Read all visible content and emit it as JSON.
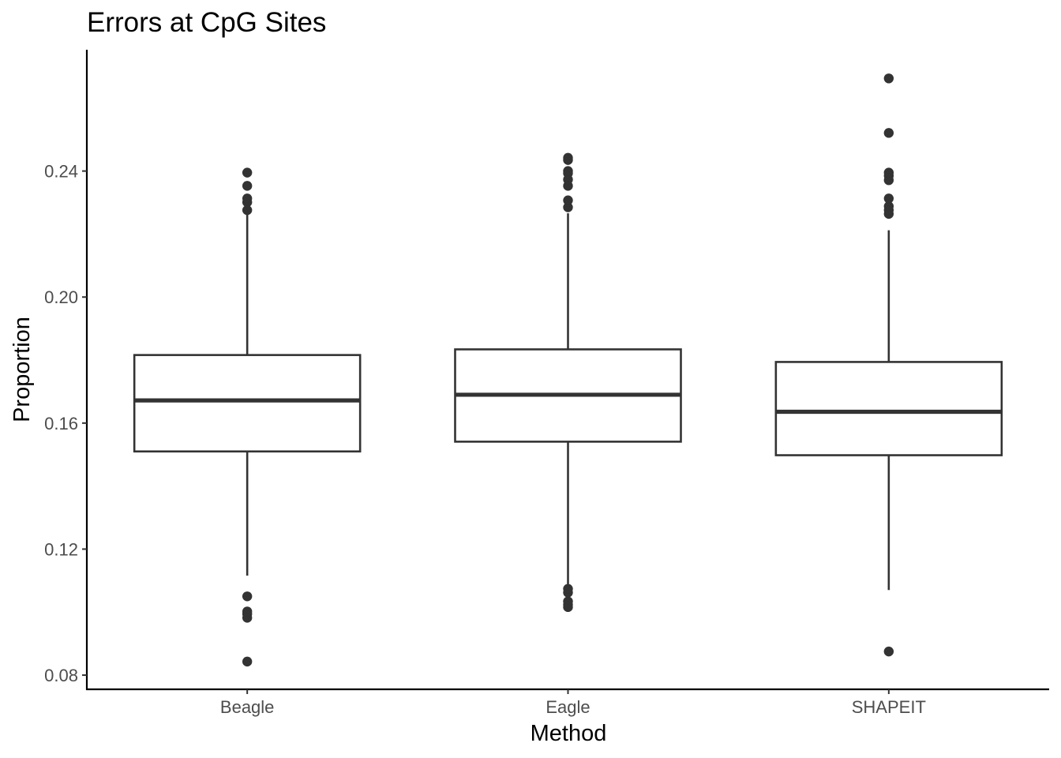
{
  "chart_data": {
    "type": "boxplot",
    "title": "Errors at CpG Sites",
    "xlabel": "Method",
    "ylabel": "Proportion",
    "ylim": [
      0.0755,
      0.2785
    ],
    "yticks": [
      0.08,
      0.12,
      0.16,
      0.2,
      0.24
    ],
    "ytick_labels": [
      "0.08",
      "0.12",
      "0.16",
      "0.20",
      "0.24"
    ],
    "grid": false,
    "legend": "none",
    "categories": [
      "Beagle",
      "Eagle",
      "SHAPEIT"
    ],
    "boxes": [
      {
        "category": "Beagle",
        "lower_whisker": 0.1116,
        "q1": 0.151,
        "median": 0.1672,
        "q3": 0.1816,
        "upper_whisker": 0.2274,
        "outliers": [
          0.0843,
          0.0982,
          0.0994,
          0.1002,
          0.105,
          0.2276,
          0.2301,
          0.2313,
          0.2353,
          0.2395
        ]
      },
      {
        "category": "Eagle",
        "lower_whisker": 0.1089,
        "q1": 0.1541,
        "median": 0.169,
        "q3": 0.1834,
        "upper_whisker": 0.2266,
        "outliers": [
          0.1016,
          0.1024,
          0.1034,
          0.1062,
          0.1074,
          0.2285,
          0.2307,
          0.2353,
          0.2373,
          0.2393,
          0.24,
          0.2435,
          0.2442
        ]
      },
      {
        "category": "SHAPEIT",
        "lower_whisker": 0.107,
        "q1": 0.1498,
        "median": 0.1636,
        "q3": 0.1794,
        "upper_whisker": 0.2212,
        "outliers": [
          0.0875,
          0.2264,
          0.2276,
          0.2288,
          0.2313,
          0.2371,
          0.2385,
          0.2395,
          0.2521,
          0.2694
        ]
      }
    ]
  }
}
